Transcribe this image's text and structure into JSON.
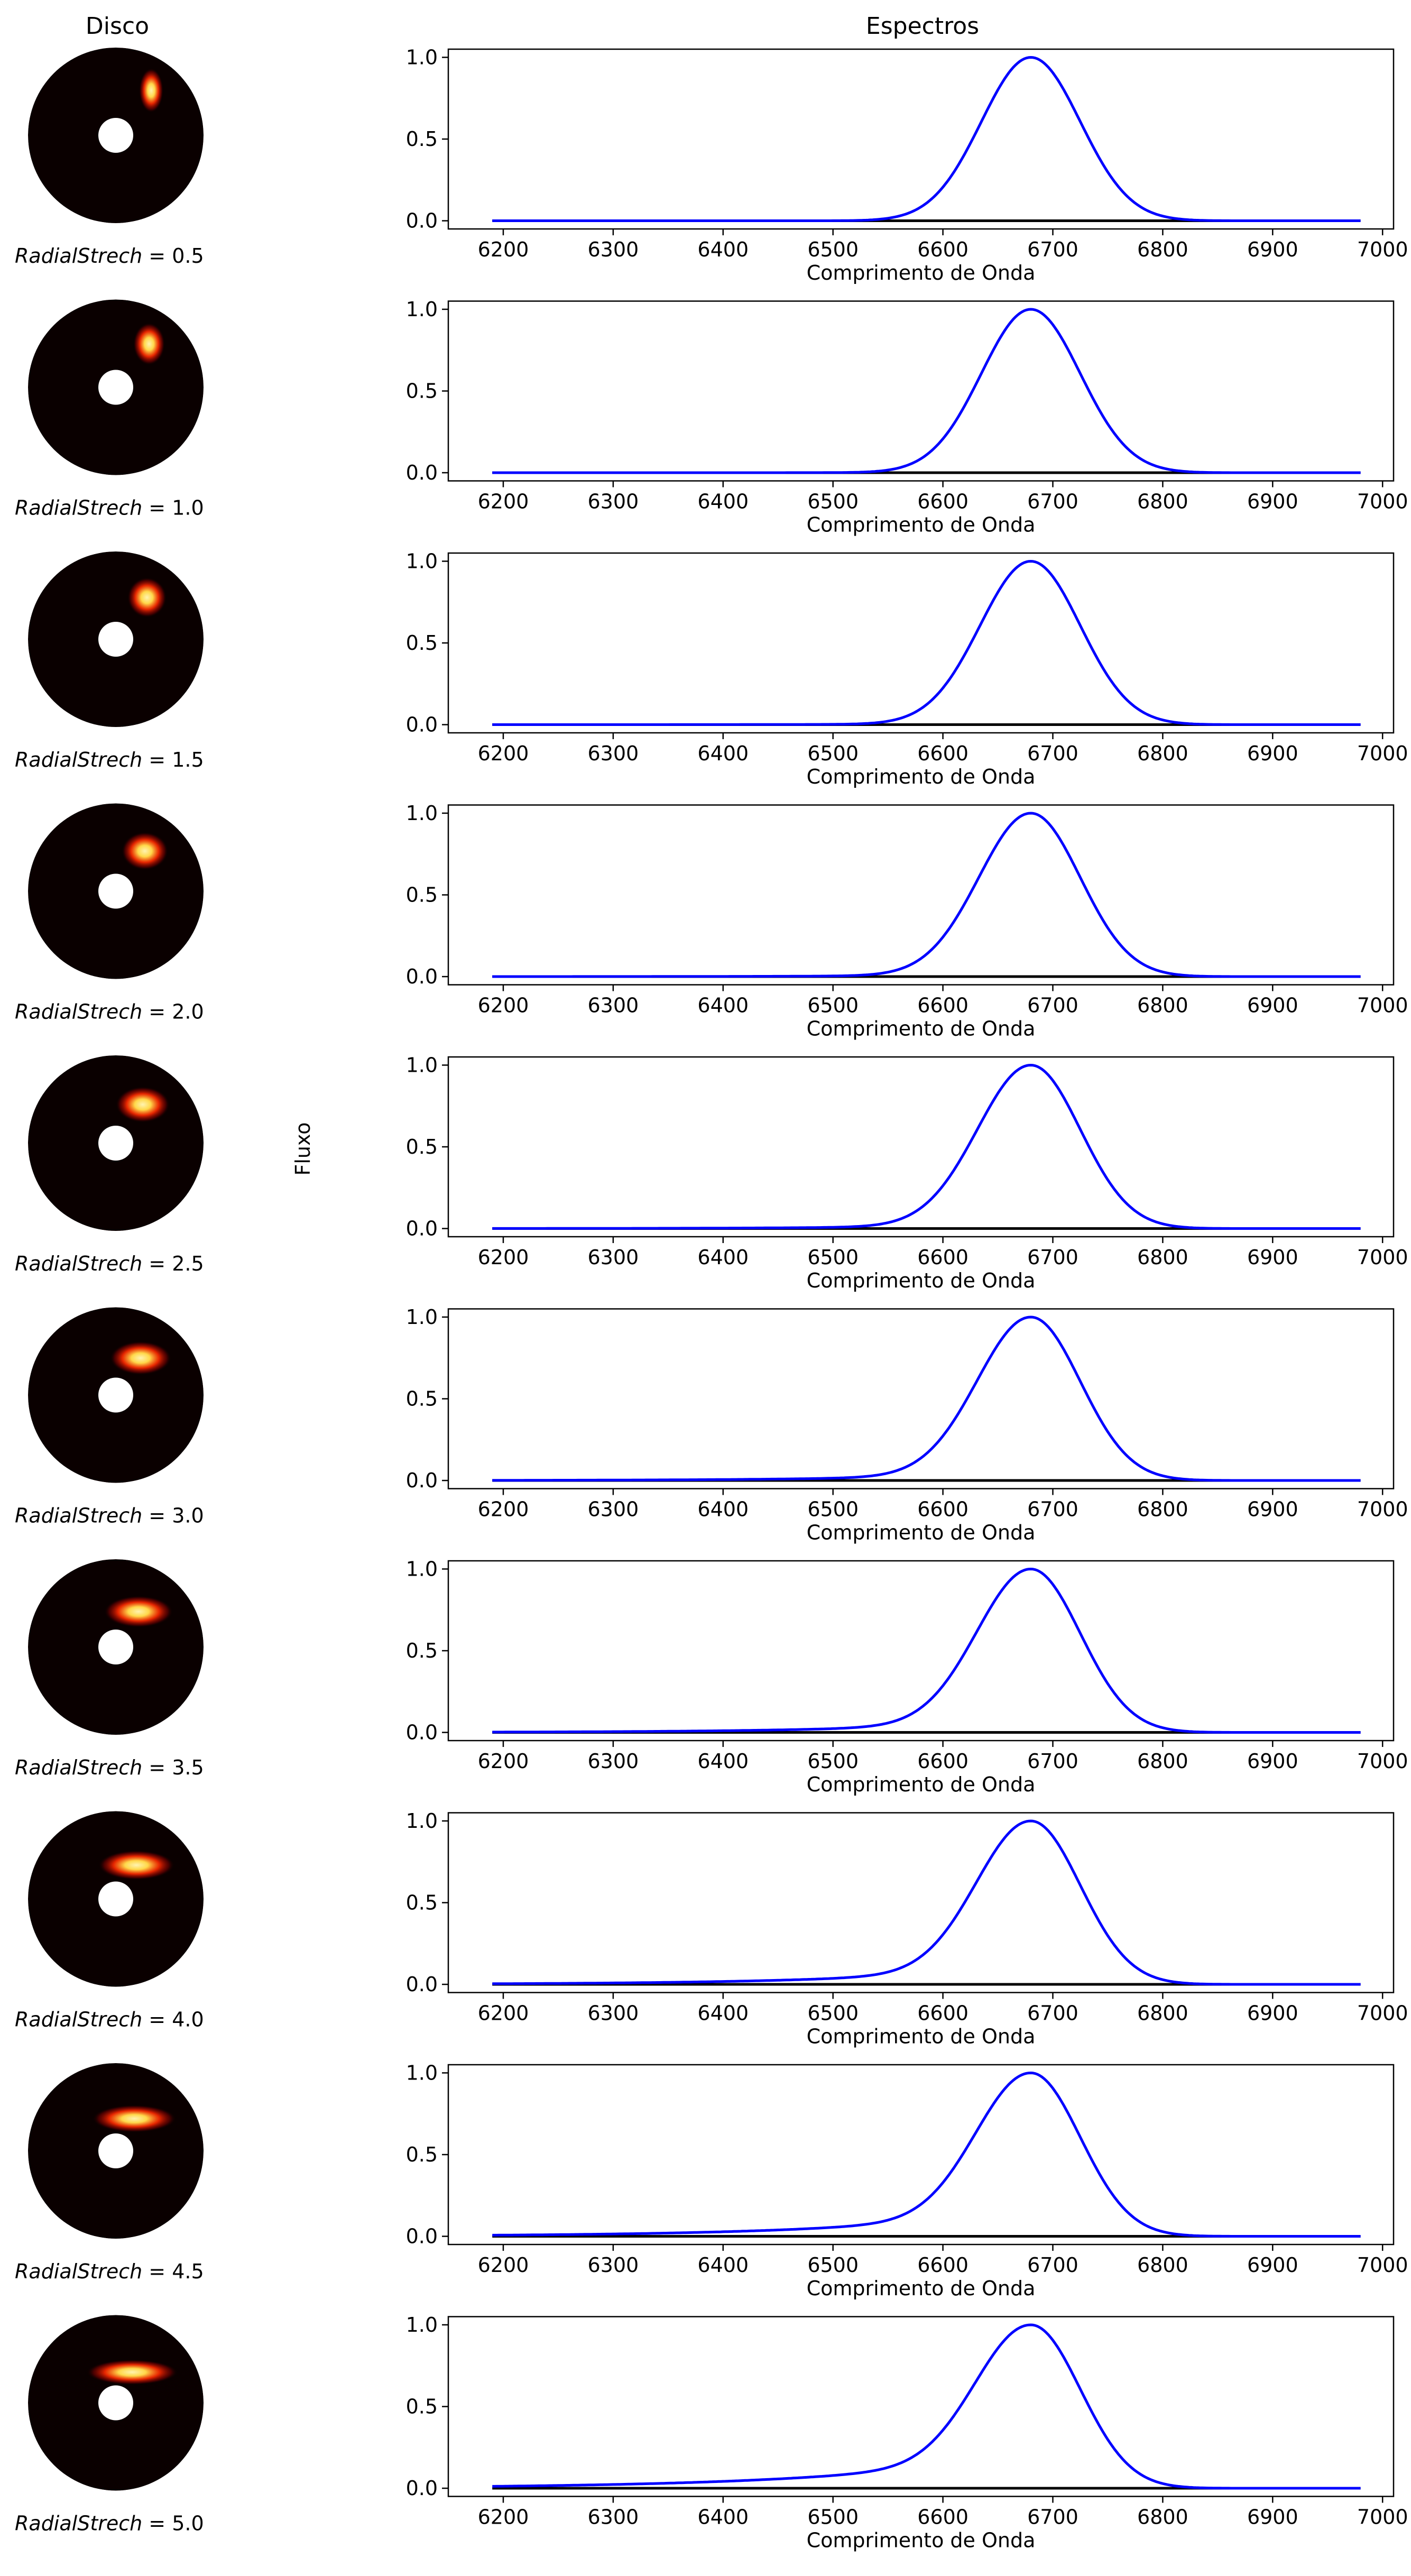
{
  "figure": {
    "left_title": "Disco",
    "right_title": "Espectros",
    "shared_ylabel": "Fluxo",
    "param_name": "RadialStrech",
    "colors": {
      "spectrum": "#0000ff",
      "baseline": "#000000",
      "disk_background": "#0a0000",
      "hotspot_core": "#fff3b0",
      "hotspot_edge": "#ff2a00"
    }
  },
  "chart_data": [
    {
      "type": "line",
      "param": "0.5",
      "label": "RadialStrech = 0.5",
      "xlabel": "Comprimento de Onda",
      "ylabel": "",
      "xlim": [
        6150,
        7010
      ],
      "ylim": [
        -0.05,
        1.05
      ],
      "xticks": [
        6200,
        6300,
        6400,
        6500,
        6600,
        6700,
        6800,
        6900,
        7000
      ],
      "yticks": [
        0.0,
        0.5,
        1.0
      ],
      "grid": false,
      "series": [
        {
          "kind": "profile",
          "center": 6680,
          "sigma_right": 45,
          "sigma_left": 45,
          "wing_amp": 0.0,
          "wing_scale": 80,
          "x_range": [
            6190,
            6980
          ],
          "peak": 1.0
        }
      ],
      "baseline": {
        "x_range": [
          6190,
          6980
        ],
        "y": 0.0
      }
    },
    {
      "type": "line",
      "param": "1.0",
      "label": "RadialStrech = 1.0",
      "xlabel": "Comprimento de Onda",
      "ylabel": "",
      "xlim": [
        6150,
        7010
      ],
      "ylim": [
        -0.05,
        1.05
      ],
      "xticks": [
        6200,
        6300,
        6400,
        6500,
        6600,
        6700,
        6800,
        6900,
        7000
      ],
      "yticks": [
        0.0,
        0.5,
        1.0
      ],
      "grid": false,
      "series": [
        {
          "kind": "profile",
          "center": 6680,
          "sigma_right": 45,
          "sigma_left": 45,
          "wing_amp": 0.005,
          "wing_scale": 80,
          "x_range": [
            6190,
            6980
          ],
          "peak": 1.0
        }
      ],
      "baseline": {
        "x_range": [
          6190,
          6980
        ],
        "y": 0.0
      }
    },
    {
      "type": "line",
      "param": "1.5",
      "label": "RadialStrech = 1.5",
      "xlabel": "Comprimento de Onda",
      "ylabel": "",
      "xlim": [
        6150,
        7010
      ],
      "ylim": [
        -0.05,
        1.05
      ],
      "xticks": [
        6200,
        6300,
        6400,
        6500,
        6600,
        6700,
        6800,
        6900,
        7000
      ],
      "yticks": [
        0.0,
        0.5,
        1.0
      ],
      "grid": false,
      "series": [
        {
          "kind": "profile",
          "center": 6680,
          "sigma_right": 45,
          "sigma_left": 46,
          "wing_amp": 0.012,
          "wing_scale": 90,
          "x_range": [
            6190,
            6980
          ],
          "peak": 1.0
        }
      ],
      "baseline": {
        "x_range": [
          6190,
          6980
        ],
        "y": 0.0
      }
    },
    {
      "type": "line",
      "param": "2.0",
      "label": "RadialStrech = 2.0",
      "xlabel": "Comprimento de Onda",
      "ylabel": "",
      "xlim": [
        6150,
        7010
      ],
      "ylim": [
        -0.05,
        1.05
      ],
      "xticks": [
        6200,
        6300,
        6400,
        6500,
        6600,
        6700,
        6800,
        6900,
        7000
      ],
      "yticks": [
        0.0,
        0.5,
        1.0
      ],
      "grid": false,
      "series": [
        {
          "kind": "profile",
          "center": 6680,
          "sigma_right": 45,
          "sigma_left": 47,
          "wing_amp": 0.02,
          "wing_scale": 100,
          "x_range": [
            6190,
            6980
          ],
          "peak": 1.0
        }
      ],
      "baseline": {
        "x_range": [
          6190,
          6980
        ],
        "y": 0.0
      }
    },
    {
      "type": "line",
      "param": "2.5",
      "label": "RadialStrech = 2.5",
      "xlabel": "Comprimento de Onda",
      "ylabel": "",
      "xlim": [
        6150,
        7010
      ],
      "ylim": [
        -0.05,
        1.05
      ],
      "xticks": [
        6200,
        6300,
        6400,
        6500,
        6600,
        6700,
        6800,
        6900,
        7000
      ],
      "yticks": [
        0.0,
        0.5,
        1.0
      ],
      "grid": false,
      "series": [
        {
          "kind": "profile",
          "center": 6680,
          "sigma_right": 45,
          "sigma_left": 48,
          "wing_amp": 0.035,
          "wing_scale": 110,
          "x_range": [
            6190,
            6980
          ],
          "peak": 1.0
        }
      ],
      "baseline": {
        "x_range": [
          6190,
          6980
        ],
        "y": 0.0
      }
    },
    {
      "type": "line",
      "param": "3.0",
      "label": "RadialStrech = 3.0",
      "xlabel": "Comprimento de Onda",
      "ylabel": "",
      "xlim": [
        6150,
        7010
      ],
      "ylim": [
        -0.05,
        1.05
      ],
      "xticks": [
        6200,
        6300,
        6400,
        6500,
        6600,
        6700,
        6800,
        6900,
        7000
      ],
      "yticks": [
        0.0,
        0.5,
        1.0
      ],
      "grid": false,
      "series": [
        {
          "kind": "profile",
          "center": 6680,
          "sigma_right": 45,
          "sigma_left": 48,
          "wing_amp": 0.06,
          "wing_scale": 120,
          "x_range": [
            6190,
            6980
          ],
          "peak": 1.0
        }
      ],
      "baseline": {
        "x_range": [
          6190,
          6980
        ],
        "y": 0.0
      }
    },
    {
      "type": "line",
      "param": "3.5",
      "label": "RadialStrech = 3.5",
      "xlabel": "Comprimento de Onda",
      "ylabel": "",
      "xlim": [
        6150,
        7010
      ],
      "ylim": [
        -0.05,
        1.05
      ],
      "xticks": [
        6200,
        6300,
        6400,
        6500,
        6600,
        6700,
        6800,
        6900,
        7000
      ],
      "yticks": [
        0.0,
        0.5,
        1.0
      ],
      "grid": false,
      "series": [
        {
          "kind": "profile",
          "center": 6680,
          "sigma_right": 45,
          "sigma_left": 48,
          "wing_amp": 0.09,
          "wing_scale": 130,
          "x_range": [
            6190,
            6980
          ],
          "peak": 1.0
        }
      ],
      "baseline": {
        "x_range": [
          6190,
          6980
        ],
        "y": 0.0
      }
    },
    {
      "type": "line",
      "param": "4.0",
      "label": "RadialStrech = 4.0",
      "xlabel": "Comprimento de Onda",
      "ylabel": "",
      "xlim": [
        6150,
        7010
      ],
      "ylim": [
        -0.05,
        1.05
      ],
      "xticks": [
        6200,
        6300,
        6400,
        6500,
        6600,
        6700,
        6800,
        6900,
        7000
      ],
      "yticks": [
        0.0,
        0.5,
        1.0
      ],
      "grid": false,
      "series": [
        {
          "kind": "profile",
          "center": 6680,
          "sigma_right": 45,
          "sigma_left": 48,
          "wing_amp": 0.13,
          "wing_scale": 140,
          "x_range": [
            6190,
            6980
          ],
          "peak": 1.0
        }
      ],
      "baseline": {
        "x_range": [
          6190,
          6980
        ],
        "y": 0.0
      }
    },
    {
      "type": "line",
      "param": "4.5",
      "label": "RadialStrech = 4.5",
      "xlabel": "Comprimento de Onda",
      "ylabel": "",
      "xlim": [
        6150,
        7010
      ],
      "ylim": [
        -0.05,
        1.05
      ],
      "xticks": [
        6200,
        6300,
        6400,
        6500,
        6600,
        6700,
        6800,
        6900,
        7000
      ],
      "yticks": [
        0.0,
        0.5,
        1.0
      ],
      "grid": false,
      "series": [
        {
          "kind": "profile",
          "center": 6680,
          "sigma_right": 45,
          "sigma_left": 48,
          "wing_amp": 0.18,
          "wing_scale": 150,
          "x_range": [
            6190,
            6980
          ],
          "peak": 1.0
        }
      ],
      "baseline": {
        "x_range": [
          6190,
          6980
        ],
        "y": 0.0
      }
    },
    {
      "type": "line",
      "param": "5.0",
      "label": "RadialStrech = 5.0",
      "xlabel": "Comprimento de Onda",
      "ylabel": "",
      "xlim": [
        6150,
        7010
      ],
      "ylim": [
        -0.05,
        1.05
      ],
      "xticks": [
        6200,
        6300,
        6400,
        6500,
        6600,
        6700,
        6800,
        6900,
        7000
      ],
      "yticks": [
        0.0,
        0.5,
        1.0
      ],
      "grid": false,
      "series": [
        {
          "kind": "profile",
          "center": 6680,
          "sigma_right": 45,
          "sigma_left": 48,
          "wing_amp": 0.23,
          "wing_scale": 165,
          "x_range": [
            6190,
            6980
          ],
          "peak": 1.0
        }
      ],
      "baseline": {
        "x_range": [
          6190,
          6980
        ],
        "y": 0.0
      }
    }
  ]
}
